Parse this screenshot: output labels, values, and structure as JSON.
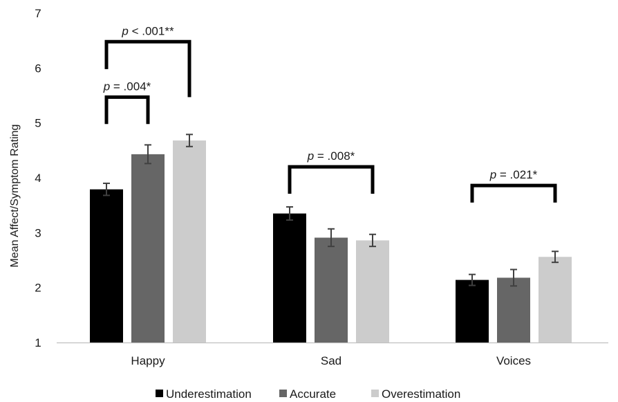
{
  "chart_data": {
    "type": "bar",
    "ylabel": "Mean Affect/Symptom Rating",
    "ylim": [
      1,
      7
    ],
    "yticks": [
      "1",
      "2",
      "3",
      "4",
      "5",
      "6",
      "7"
    ],
    "categories": [
      "Happy",
      "Sad",
      "Voices"
    ],
    "series": [
      {
        "name": "Underestimation",
        "color": "#000000",
        "values": [
          3.79,
          3.35,
          2.14
        ],
        "errors": [
          0.11,
          0.12,
          0.1
        ]
      },
      {
        "name": "Accurate",
        "color": "#666666",
        "values": [
          4.43,
          2.91,
          2.18
        ],
        "errors": [
          0.17,
          0.16,
          0.15
        ]
      },
      {
        "name": "Overestimation",
        "color": "#cccccc",
        "values": [
          4.68,
          2.86,
          2.56
        ],
        "errors": [
          0.11,
          0.11,
          0.1
        ]
      }
    ],
    "legend_position": "bottom",
    "grid": false,
    "annotations": [
      {
        "category": "Happy",
        "from_series": "Underestimation",
        "to_series": "Overestimation",
        "p_label": "p",
        "p_value": " < .001**",
        "bracket_y": 6.48,
        "bracket_bottom": 5.98,
        "bracket_bottom_right": 5.47
      },
      {
        "category": "Happy",
        "from_series": "Underestimation",
        "to_series": "Accurate",
        "p_label": "p",
        "p_value": " = .004*",
        "bracket_y": 5.47,
        "bracket_bottom": 4.98,
        "bracket_bottom_right": 4.98
      },
      {
        "category": "Sad",
        "from_series": "Underestimation",
        "to_series": "Overestimation",
        "p_label": "p",
        "p_value": " = .008*",
        "bracket_y": 4.2,
        "bracket_bottom": 3.71,
        "bracket_bottom_right": 3.71
      },
      {
        "category": "Voices",
        "from_series": "Underestimation",
        "to_series": "Overestimation",
        "p_label": "p",
        "p_value": " = .021*",
        "bracket_y": 3.86,
        "bracket_bottom": 3.55,
        "bracket_bottom_right": 3.55
      }
    ]
  }
}
